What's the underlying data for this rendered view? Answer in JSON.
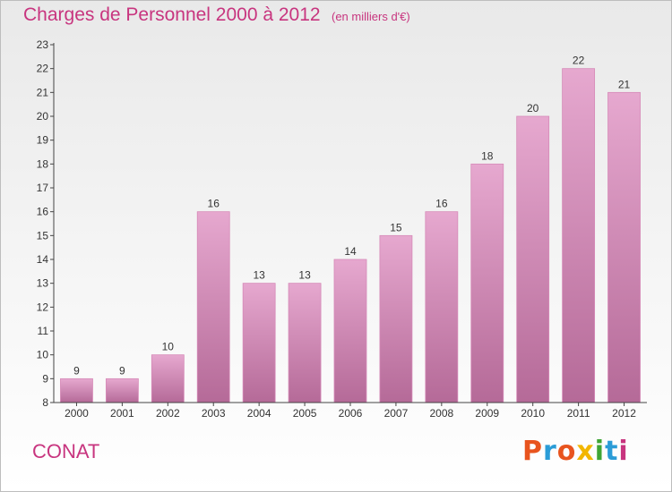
{
  "header": {
    "title": "Charges de Personnel 2000 à 2012",
    "unit_note": "(en milliers d'€)"
  },
  "footer": {
    "town": "CONAT",
    "logo_text": "Proxiti",
    "logo_colors": [
      "#e8541e",
      "#2a9cd7",
      "#e8541e",
      "#f2b600",
      "#3fa535",
      "#2a9cd7",
      "#c8357f"
    ]
  },
  "colors": {
    "accent": "#c8357f",
    "bar_top": "#e6a8cf",
    "bar_bottom": "#b56a98",
    "axis": "#444444"
  },
  "chart_data": {
    "type": "bar",
    "title": "Charges de Personnel 2000 à 2012",
    "subtitle": "(en milliers d'€)",
    "categories": [
      "2000",
      "2001",
      "2002",
      "2003",
      "2004",
      "2005",
      "2006",
      "2007",
      "2008",
      "2009",
      "2010",
      "2011",
      "2012"
    ],
    "values": [
      9,
      9,
      10,
      16,
      13,
      13,
      14,
      15,
      16,
      18,
      20,
      22,
      21
    ],
    "ylim": [
      8,
      23
    ],
    "yticks": [
      8,
      9,
      10,
      11,
      12,
      13,
      14,
      15,
      16,
      17,
      18,
      19,
      20,
      21,
      22,
      23
    ],
    "xlabel": "",
    "ylabel": "",
    "grid": false,
    "data_labels": true
  }
}
